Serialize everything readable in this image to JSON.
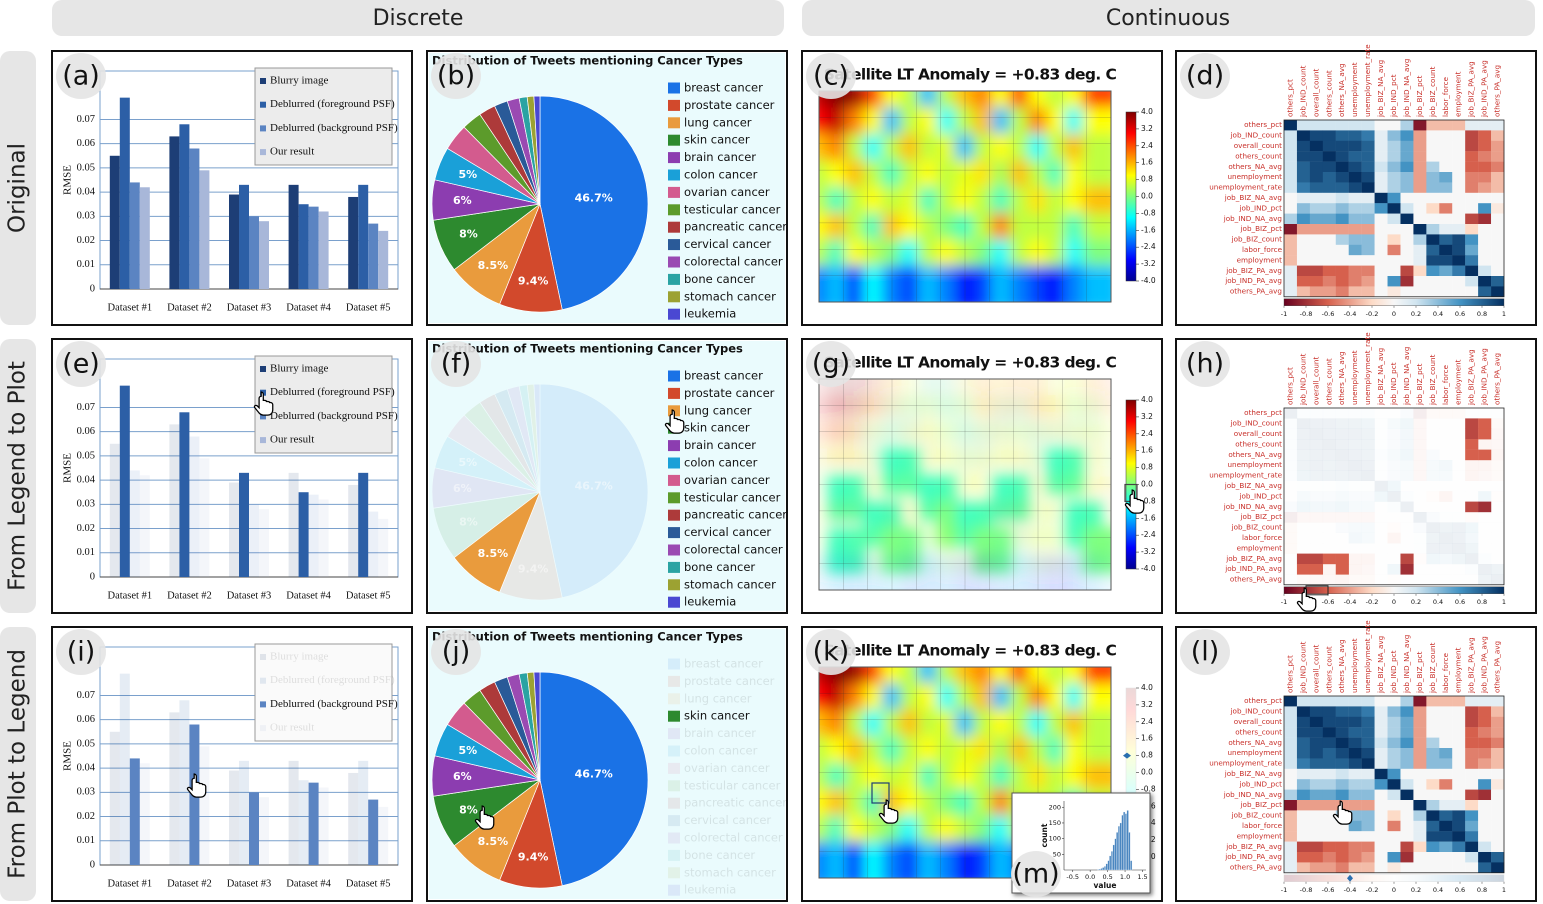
{
  "column_headers": [
    "Discrete",
    "Continuous"
  ],
  "row_headers": [
    "Original",
    "From Legend to Plot",
    "From Plot to Legend"
  ],
  "panel_labels": [
    "(a)",
    "(b)",
    "(c)",
    "(d)",
    "(e)",
    "(f)",
    "(g)",
    "(h)",
    "(i)",
    "(j)",
    "(k)",
    "(l)",
    "(m)"
  ],
  "chart_data": [
    {
      "type": "bar",
      "ylabel": "RMSE",
      "categories": [
        "Dataset #1",
        "Dataset #2",
        "Dataset #3",
        "Dataset #4",
        "Dataset #5"
      ],
      "series": [
        {
          "name": "Blurry image",
          "color": "#1d3e76",
          "values": [
            0.055,
            0.063,
            0.039,
            0.043,
            0.038
          ]
        },
        {
          "name": "Deblurred (foreground PSF)",
          "color": "#2c5fa6",
          "values": [
            0.079,
            0.068,
            0.043,
            0.035,
            0.043
          ]
        },
        {
          "name": "Deblurred (background PSF)",
          "color": "#5b84c2",
          "values": [
            0.044,
            0.058,
            0.03,
            0.034,
            0.027
          ]
        },
        {
          "name": "Our result",
          "color": "#a8b7d9",
          "values": [
            0.042,
            0.049,
            0.028,
            0.032,
            0.024
          ]
        }
      ],
      "ylim": [
        0,
        0.09
      ],
      "yticks": [
        0,
        0.01,
        0.02,
        0.03,
        0.04,
        0.05,
        0.06,
        0.07
      ],
      "grid": true,
      "legend": "upper right"
    },
    {
      "type": "pie",
      "title": "Distribution of Tweets mentioning Cancer Types",
      "categories": [
        "breast cancer",
        "prostate cancer",
        "lung cancer",
        "skin cancer",
        "brain cancer",
        "colon cancer",
        "ovarian cancer",
        "testicular cancer",
        "pancreatic cancer",
        "cervical cancer",
        "colorectal cancer",
        "bone cancer",
        "stomach cancer",
        "leukemia"
      ],
      "colors": [
        "#1a72e6",
        "#d2492c",
        "#e99b3d",
        "#2d8a2f",
        "#8c3db0",
        "#1aa0d8",
        "#d35b8e",
        "#5c9b2b",
        "#ad3a3a",
        "#2a5a98",
        "#9a4ab2",
        "#2aa3a3",
        "#9ca232",
        "#4a48d2"
      ],
      "values": [
        46.7,
        9.4,
        8.5,
        8,
        6,
        5,
        4,
        3,
        2.5,
        2,
        1.8,
        1.2,
        1,
        0.9
      ],
      "value_labels": [
        "46.7%",
        "9.4%",
        "8.5%",
        "8%",
        "6%",
        "5%",
        null,
        null,
        null,
        null,
        null,
        null,
        null,
        null
      ]
    },
    {
      "type": "map",
      "title": "Satellite LT Anomaly = +0.83 deg. C",
      "colormap": "jet",
      "values": [
        [
          3.5,
          4,
          3.8,
          2.5,
          1,
          0.5,
          -1.5,
          0.5,
          1.5,
          2,
          1,
          2.5,
          1,
          0.5,
          1,
          2.5
        ],
        [
          3,
          3.5,
          2,
          1,
          -1.5,
          0.5,
          1,
          -1,
          0.5,
          1.5,
          -1.5,
          0.5,
          2,
          1,
          -1,
          1
        ],
        [
          1.5,
          2,
          0.5,
          -1,
          0.5,
          1.5,
          0.5,
          0.8,
          -1.5,
          0.5,
          1,
          0.5,
          -1,
          0.5,
          1.5,
          0.5
        ],
        [
          0.5,
          1,
          1.5,
          0.5,
          -0.5,
          0.5,
          1,
          0.5,
          0.8,
          1.2,
          0.3,
          1.5,
          0.5,
          -0.5,
          1,
          0.5
        ],
        [
          0.5,
          -0.5,
          0.5,
          1,
          0.5,
          0.8,
          -0.5,
          0.5,
          1,
          0.5,
          -0.5,
          0.5,
          1.2,
          0.5,
          1,
          1.5
        ],
        [
          1,
          1.5,
          0.5,
          -0.5,
          1.5,
          1,
          0.5,
          0,
          -0.5,
          0.5,
          2,
          0.5,
          0.5,
          0.5,
          -0.5,
          0.5
        ],
        [
          0.5,
          -0.5,
          1,
          0.5,
          0,
          -1,
          0.5,
          1,
          0.5,
          0,
          -1,
          0.5,
          1,
          0.5,
          -1,
          0
        ],
        [
          -2,
          -1.5,
          -2.5,
          -1,
          -2,
          -2.5,
          -1.5,
          -2,
          -3,
          -2.5,
          -1.5,
          -2,
          -2.5,
          -3,
          -2,
          -1.5
        ]
      ],
      "colorbar_lim": [
        -4,
        4
      ],
      "colorbar_ticks": [
        {
          "value": 4,
          "label": "4.0"
        },
        {
          "value": 3.2,
          "label": "3.2"
        },
        {
          "value": 2.4,
          "label": "2.4"
        },
        {
          "value": 1.6,
          "label": "1.6"
        },
        {
          "value": 0.8,
          "label": "0.8"
        },
        {
          "value": 0,
          "label": "0.0"
        },
        {
          "value": -0.8,
          "label": "-0.8"
        },
        {
          "value": -1.6,
          "label": "-1.6"
        },
        {
          "value": -2.4,
          "label": "-2.4"
        },
        {
          "value": -3.2,
          "label": "-3.2"
        },
        {
          "value": -4,
          "label": "-4.0"
        }
      ]
    },
    {
      "type": "heatmap",
      "colormap": "RdBu",
      "labels": [
        "others_pct",
        "job_IND_count",
        "overall_count",
        "others_count",
        "others_NA_avg",
        "unemployment",
        "unemployment_rate",
        "job_BIZ_NA_avg",
        "job_IND_pct",
        "job_IND_NA_avg",
        "job_BIZ_pct",
        "job_BIZ_count",
        "labor_force",
        "employment",
        "job_BIZ_PA_avg",
        "job_IND_PA_avg",
        "others_PA_avg"
      ],
      "values": [
        [
          1,
          0.2,
          0.2,
          0.2,
          0.2,
          0.2,
          0.2,
          0,
          0,
          0.3,
          -0.9,
          -0.3,
          -0.3,
          -0.3,
          0.1,
          0.1,
          0.1
        ],
        [
          0.2,
          1,
          0.9,
          0.9,
          0.8,
          0.8,
          0.7,
          0.1,
          0.4,
          0.6,
          -0.4,
          0,
          0,
          0,
          -0.7,
          -0.6,
          -0.3
        ],
        [
          0.2,
          0.9,
          1,
          0.9,
          0.9,
          0.9,
          0.8,
          0.1,
          0.3,
          0.5,
          -0.4,
          0,
          0,
          0,
          -0.7,
          -0.6,
          -0.4
        ],
        [
          0.2,
          0.9,
          0.9,
          1,
          0.9,
          0.8,
          0.8,
          0.1,
          0.3,
          0.5,
          -0.4,
          0,
          0,
          0,
          -0.6,
          -0.5,
          -0.4
        ],
        [
          0.2,
          0.8,
          0.9,
          0.9,
          1,
          0.9,
          0.8,
          0.2,
          0.4,
          0.6,
          -0.4,
          0.3,
          0,
          0,
          -0.6,
          -0.6,
          -0.5
        ],
        [
          0.2,
          0.8,
          0.9,
          0.8,
          0.9,
          1,
          0.9,
          0.1,
          0.3,
          0.4,
          -0.4,
          0.4,
          0.5,
          0,
          -0.5,
          -0.5,
          -0.3
        ],
        [
          0.2,
          0.7,
          0.8,
          0.8,
          0.8,
          0.9,
          1,
          0.1,
          0.3,
          0.4,
          -0.4,
          0.4,
          0.4,
          0,
          -0.5,
          -0.4,
          -0.3
        ],
        [
          0,
          0.1,
          0.1,
          0.1,
          0.2,
          0.1,
          0.1,
          1,
          0.6,
          0,
          0,
          0,
          0,
          0,
          0,
          0,
          0
        ],
        [
          0,
          0.4,
          0.3,
          0.3,
          0.4,
          0.3,
          0.3,
          0.6,
          1,
          0.2,
          0,
          -0.2,
          -0.5,
          0,
          0,
          0.6,
          -0.1
        ],
        [
          0.3,
          0.6,
          0.5,
          0.5,
          0.6,
          0.4,
          0.4,
          0,
          0.2,
          1,
          0,
          0,
          0,
          0,
          -0.7,
          -0.8,
          0
        ],
        [
          -0.9,
          -0.4,
          -0.4,
          -0.4,
          -0.4,
          -0.4,
          -0.4,
          0,
          0,
          0,
          1,
          0.3,
          0.1,
          0.1,
          -0.2,
          0,
          0
        ],
        [
          -0.3,
          0,
          0,
          0,
          0.3,
          0.4,
          0.4,
          0,
          -0.2,
          0,
          0.3,
          1,
          0.8,
          0.9,
          0.6,
          0,
          0
        ],
        [
          -0.3,
          0,
          0,
          0,
          0,
          0.5,
          0.4,
          0,
          -0.5,
          0,
          0.1,
          0.8,
          1,
          0.9,
          0.5,
          0,
          0
        ],
        [
          -0.3,
          0,
          0,
          0,
          0,
          0,
          0,
          0,
          0,
          0,
          0.1,
          0.9,
          0.9,
          1,
          0.7,
          0,
          0
        ],
        [
          0.1,
          -0.7,
          -0.7,
          -0.6,
          -0.6,
          -0.5,
          -0.5,
          0,
          0,
          -0.7,
          -0.2,
          0.6,
          0.5,
          0.7,
          1,
          0.2,
          0
        ],
        [
          0.1,
          -0.6,
          -0.6,
          -0.5,
          -0.6,
          -0.5,
          -0.4,
          0,
          0.6,
          -0.8,
          0,
          0,
          0,
          0,
          0.2,
          1,
          0.8
        ],
        [
          0.1,
          -0.3,
          -0.4,
          -0.4,
          -0.5,
          -0.3,
          -0.3,
          0,
          -0.1,
          0,
          0,
          0,
          0,
          0,
          0,
          0.8,
          1
        ]
      ],
      "colorbar_lim": [
        -1,
        1
      ],
      "colorbar_ticks": [
        -1,
        -0.8,
        -0.6,
        -0.4,
        -0.2,
        0,
        0.2,
        0.4,
        0.6,
        0.8,
        1
      ]
    },
    {
      "type": "histogram",
      "xlabel": "value",
      "ylabel": "count",
      "color": "#4a86c0",
      "bins": [
        0.2,
        0.25,
        0.3,
        0.35,
        0.4,
        0.45,
        0.5,
        0.55,
        0.6,
        0.65,
        0.7,
        0.75,
        0.8,
        0.85,
        0.9,
        0.95,
        1.0,
        1.05,
        1.1,
        1.15,
        1.2
      ],
      "values": [
        2,
        3,
        5,
        8,
        12,
        20,
        30,
        45,
        60,
        80,
        100,
        120,
        140,
        150,
        175,
        185,
        180,
        190,
        120,
        30
      ],
      "xlim": [
        -0.75,
        1.6
      ],
      "ylim": [
        0,
        220
      ],
      "xticks": [
        {
          "value": -0.5,
          "label": "-0.5"
        },
        {
          "value": 0,
          "label": "0.0"
        },
        {
          "value": 0.5,
          "label": "0.5"
        },
        {
          "value": 1,
          "label": "1.0"
        },
        {
          "value": 1.5,
          "label": "1.5"
        }
      ],
      "yticks": [
        50,
        100,
        150,
        200
      ]
    }
  ]
}
